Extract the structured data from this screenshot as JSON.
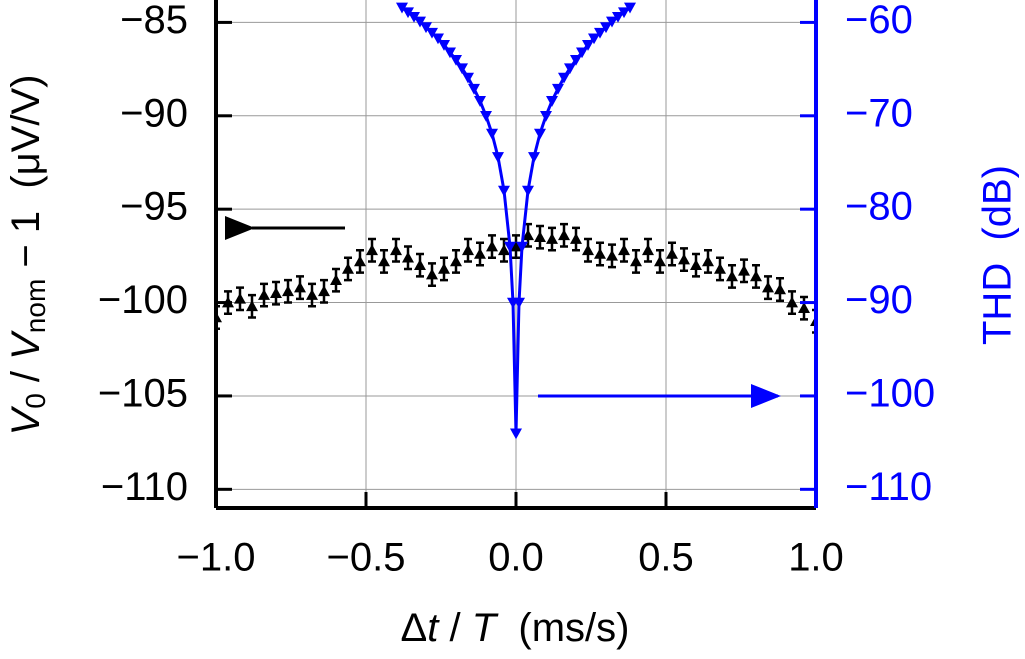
{
  "chart_data": {
    "type": "scatter",
    "x_label": [
      "Δ",
      "t",
      " / ",
      "T",
      "  (ms/s)"
    ],
    "y_label": [
      "V",
      "0",
      " / ",
      "V",
      "nom",
      " − 1  (μV/V)"
    ],
    "y2_label": "THD  (dB)",
    "xlim": [
      -1.0,
      1.0
    ],
    "xticks": [
      {
        "value": -1.0,
        "label": "−1.0"
      },
      {
        "value": -0.5,
        "label": "−0.5"
      },
      {
        "value": 0.0,
        "label": "0.0"
      },
      0.5,
      {
        "value": 1.0,
        "label": "1.0"
      }
    ],
    "ylim": [
      -111.0,
      -83.8
    ],
    "yticks": [
      {
        "value": -110,
        "label": "−110"
      },
      {
        "value": -105,
        "label": "−105"
      },
      {
        "value": -100,
        "label": "−100"
      },
      {
        "value": -95,
        "label": "−95"
      },
      {
        "value": -90,
        "label": "−90"
      },
      {
        "value": -85,
        "label": "−85"
      }
    ],
    "y2lim": [
      -112.0,
      -57.6
    ],
    "y2ticks": [
      {
        "value": -110,
        "label": "−110"
      },
      {
        "value": -100,
        "label": "−100"
      },
      {
        "value": -90,
        "label": "−90"
      },
      {
        "value": -80,
        "label": "−80"
      },
      {
        "value": -70,
        "label": "−70"
      },
      {
        "value": -60,
        "label": "−60"
      }
    ],
    "grid": true,
    "series": [
      {
        "color": "#000000",
        "axis": "y",
        "marker": "triangle-up",
        "x": [
          -1.0,
          -0.96,
          -0.92,
          -0.88,
          -0.84,
          -0.8,
          -0.76,
          -0.72,
          -0.68,
          -0.64,
          -0.6,
          -0.56,
          -0.52,
          -0.48,
          -0.44,
          -0.4,
          -0.36,
          -0.32,
          -0.28,
          -0.24,
          -0.2,
          -0.16,
          -0.12,
          -0.08,
          -0.04,
          0.0,
          0.04,
          0.08,
          0.12,
          0.16,
          0.2,
          0.24,
          0.28,
          0.32,
          0.36,
          0.4,
          0.44,
          0.48,
          0.52,
          0.56,
          0.6,
          0.64,
          0.68,
          0.72,
          0.76,
          0.8,
          0.84,
          0.88,
          0.92,
          0.96,
          1.0
        ],
        "values": [
          -100.8,
          -100.0,
          -99.8,
          -100.2,
          -99.6,
          -99.5,
          -99.4,
          -99.2,
          -99.6,
          -99.4,
          -98.8,
          -98.2,
          -97.8,
          -97.2,
          -97.8,
          -97.2,
          -97.6,
          -98.0,
          -98.5,
          -98.2,
          -97.8,
          -97.2,
          -97.4,
          -97.0,
          -97.2,
          -97.0,
          -96.4,
          -96.5,
          -96.6,
          -96.4,
          -96.6,
          -97.2,
          -97.4,
          -97.5,
          -97.2,
          -97.8,
          -97.2,
          -97.8,
          -97.4,
          -97.7,
          -98.0,
          -97.8,
          -98.2,
          -98.6,
          -98.3,
          -98.6,
          -99.2,
          -99.3,
          -100.0,
          -100.3,
          -101.0
        ],
        "errors": [
          0.6,
          0.6,
          0.6,
          0.6,
          0.6,
          0.6,
          0.6,
          0.6,
          0.6,
          0.6,
          0.6,
          0.6,
          0.6,
          0.6,
          0.6,
          0.6,
          0.6,
          0.6,
          0.6,
          0.6,
          0.6,
          0.6,
          0.6,
          0.6,
          0.6,
          0.6,
          0.6,
          0.6,
          0.6,
          0.6,
          0.6,
          0.6,
          0.6,
          0.6,
          0.6,
          0.6,
          0.6,
          0.6,
          0.6,
          0.6,
          0.6,
          0.6,
          0.6,
          0.6,
          0.6,
          0.6,
          0.6,
          0.6,
          0.6,
          0.6,
          0.6
        ]
      },
      {
        "color": "#0000ff",
        "axis": "y2",
        "marker": "triangle-down",
        "x": [
          -0.38,
          -0.36,
          -0.34,
          -0.32,
          -0.3,
          -0.28,
          -0.26,
          -0.24,
          -0.22,
          -0.2,
          -0.18,
          -0.16,
          -0.14,
          -0.12,
          -0.1,
          -0.08,
          -0.06,
          -0.04,
          -0.02,
          -0.01,
          0.0,
          0.01,
          0.02,
          0.04,
          0.06,
          0.08,
          0.1,
          0.12,
          0.14,
          0.16,
          0.18,
          0.2,
          0.22,
          0.24,
          0.26,
          0.28,
          0.3,
          0.32,
          0.34,
          0.36,
          0.38
        ],
        "values": [
          -58.4,
          -58.9,
          -59.4,
          -59.9,
          -60.5,
          -61.1,
          -61.7,
          -62.4,
          -63.2,
          -64.0,
          -64.9,
          -65.9,
          -67.1,
          -68.4,
          -70.0,
          -71.9,
          -74.4,
          -78.0,
          -84.0,
          -90.0,
          -104.0,
          -90.0,
          -84.0,
          -78.0,
          -74.4,
          -71.9,
          -70.0,
          -68.4,
          -67.1,
          -65.9,
          -64.9,
          -64.0,
          -63.2,
          -62.4,
          -61.7,
          -61.1,
          -60.5,
          -59.9,
          -59.4,
          -58.9,
          -58.4
        ]
      }
    ]
  }
}
